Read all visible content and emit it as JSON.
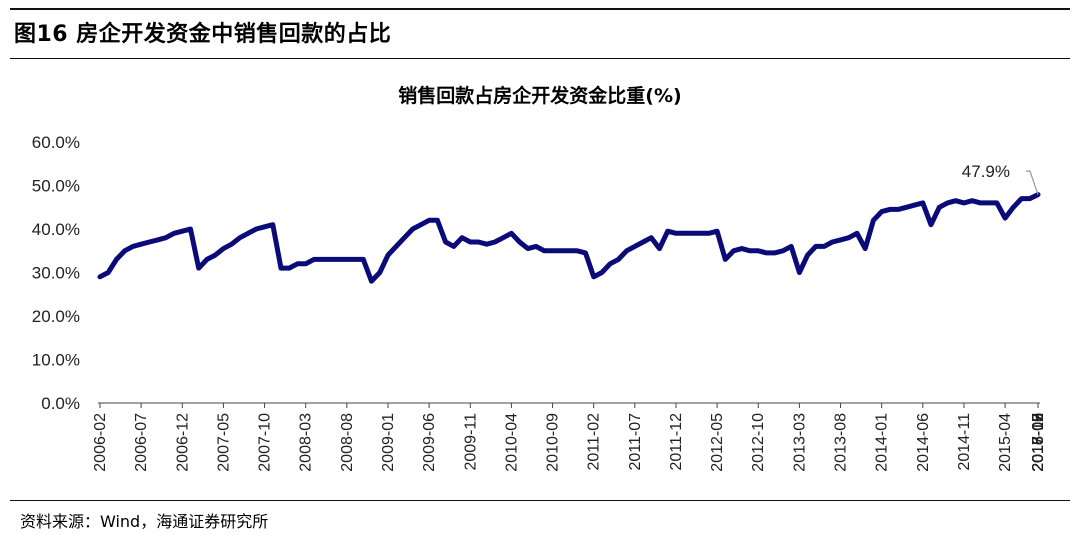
{
  "figure": {
    "title": "图16 房企开发资金中销售回款的占比",
    "source": "资料来源：Wind，海通证券研究所"
  },
  "chart_data": {
    "type": "line",
    "title": "销售回款占房企开发资金比重(%)",
    "xlabel": "",
    "ylabel": "",
    "ylim": [
      0,
      60
    ],
    "yticks": [
      "0.0%",
      "10.0%",
      "20.0%",
      "30.0%",
      "40.0%",
      "50.0%",
      "60.0%"
    ],
    "x_tick_labels": [
      "2006-02",
      "2006-07",
      "2006-12",
      "2007-05",
      "2007-10",
      "2008-03",
      "2008-08",
      "2009-01",
      "2009-06",
      "2009-11",
      "2010-04",
      "2010-09",
      "2011-02",
      "2011-07",
      "2011-12",
      "2012-05",
      "2012-10",
      "2013-03",
      "2013-08",
      "2014-01",
      "2014-06",
      "2014-11",
      "2015-04",
      "2015-09",
      "2016-02",
      "2016-07",
      "2016-12",
      "2017-05",
      "2017-10",
      "2018-03",
      "2018-08"
    ],
    "grid": false,
    "legend": "none",
    "line_color": "#0a0a78",
    "series": [
      {
        "values": [
          29,
          30,
          33,
          35,
          36,
          36.5,
          37,
          37.5,
          38,
          39,
          39.5,
          40,
          31,
          33,
          34,
          35.5,
          36.5,
          38,
          39,
          40,
          40.5,
          41,
          31,
          31,
          32,
          32,
          33,
          33,
          33,
          33,
          33,
          33,
          33,
          28,
          30,
          34,
          36,
          38,
          40,
          41,
          42,
          42,
          37,
          36,
          38,
          37,
          37,
          36.5,
          37,
          38,
          39,
          37,
          35.5,
          36,
          35,
          35,
          35,
          35,
          35,
          34.5,
          29,
          30,
          32,
          33,
          35,
          36,
          37,
          38,
          35.5,
          39.5,
          39,
          39,
          39,
          39,
          39,
          39.5,
          33,
          35,
          35.5,
          35,
          35,
          34.5,
          34.5,
          35,
          36,
          30,
          34,
          36,
          36,
          37,
          37.5,
          38,
          39,
          35.5,
          42,
          44,
          44.5,
          44.5,
          45,
          45.5,
          46,
          41,
          45,
          46,
          46.5,
          46,
          46.5,
          46,
          46,
          46,
          42.5,
          45,
          47,
          47,
          47.9
        ]
      }
    ],
    "annotation": {
      "text": "47.9%"
    }
  }
}
